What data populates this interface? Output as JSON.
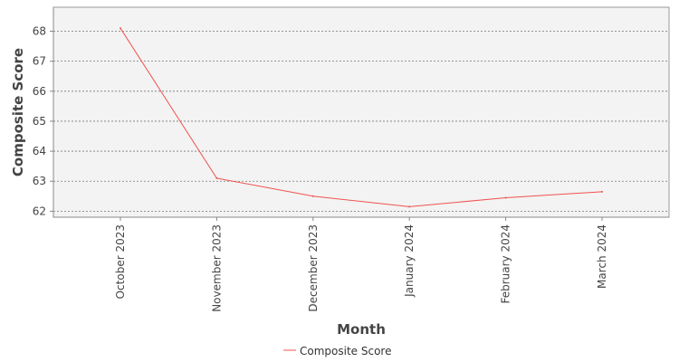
{
  "chart_data": {
    "type": "line",
    "title": "",
    "xlabel": "Month",
    "ylabel": "Composite Score",
    "categories": [
      "October 2023",
      "November 2023",
      "December 2023",
      "January 2024",
      "February 2024",
      "March 2024"
    ],
    "yticks": [
      "62",
      "63",
      "64",
      "65",
      "66",
      "67",
      "68"
    ],
    "ylim": [
      61.8,
      68.8
    ],
    "grid": true,
    "legend_position": "bottom",
    "colors": {
      "plot_background": "#f3f3f3",
      "line": "#ef5350",
      "grid": "#777777"
    },
    "series": [
      {
        "name": "Composite Score",
        "values": [
          68.1,
          63.1,
          62.5,
          62.15,
          62.45,
          62.65
        ]
      }
    ]
  }
}
